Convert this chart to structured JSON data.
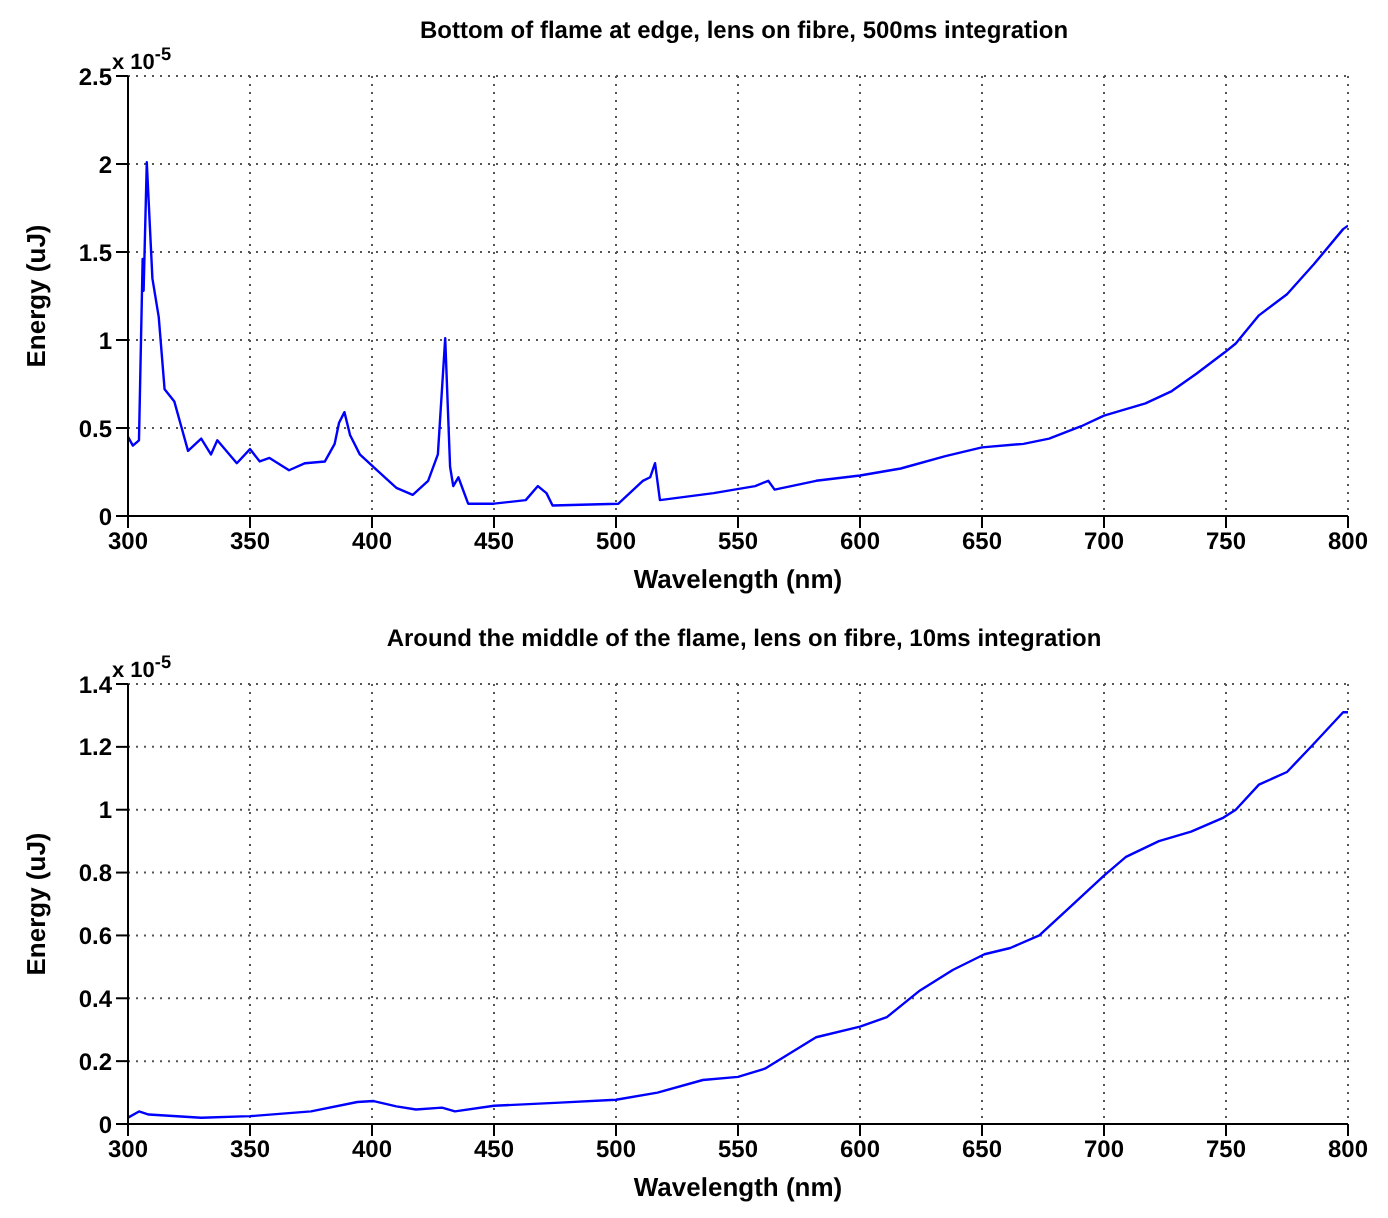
{
  "chart_data": [
    {
      "type": "line",
      "title": "Bottom of flame at edge, lens on fibre, 500ms integration",
      "xlabel": "Wavelength (nm)",
      "ylabel": "Energy (uJ)",
      "annotations": [
        "x 10$^{-5}$"
      ],
      "xlim": [
        300,
        800
      ],
      "xticks": [
        300,
        350,
        400,
        450,
        500,
        550,
        600,
        650,
        700,
        750,
        800
      ],
      "ylim": [
        0,
        2.5
      ],
      "yticks": [
        0,
        0.5,
        1,
        1.5,
        2,
        2.5
      ],
      "grid": true,
      "x": [
        300,
        302,
        304.5,
        306,
        306.4,
        307.7,
        310,
        312.6,
        315,
        319,
        322,
        324.6,
        330,
        334,
        336.6,
        344.6,
        350,
        354,
        358,
        366,
        372.6,
        380.7,
        384.7,
        386.5,
        388.7,
        391,
        395,
        402,
        410,
        416.7,
        423,
        427,
        430,
        432,
        433.3,
        435.4,
        439.4,
        450,
        463,
        468,
        471.5,
        474,
        501,
        511,
        514,
        516,
        518,
        540,
        557,
        562.4,
        565,
        582,
        600,
        616.7,
        635,
        650,
        667,
        677.5,
        690.7,
        700,
        717,
        727.8,
        738,
        749.5,
        754,
        763.5,
        775,
        786,
        798,
        800
      ],
      "series": [
        {
          "color": "#0000ff",
          "values": [
            0.45,
            0.4,
            0.43,
            1.46,
            1.28,
            2.01,
            1.35,
            1.13,
            0.72,
            0.65,
            0.5,
            0.37,
            0.44,
            0.35,
            0.43,
            0.3,
            0.38,
            0.31,
            0.33,
            0.26,
            0.3,
            0.31,
            0.41,
            0.53,
            0.59,
            0.46,
            0.35,
            0.26,
            0.16,
            0.12,
            0.2,
            0.35,
            1.01,
            0.28,
            0.17,
            0.22,
            0.07,
            0.07,
            0.09,
            0.17,
            0.13,
            0.06,
            0.07,
            0.2,
            0.22,
            0.3,
            0.09,
            0.13,
            0.17,
            0.2,
            0.15,
            0.2,
            0.23,
            0.27,
            0.34,
            0.39,
            0.41,
            0.44,
            0.51,
            0.57,
            0.64,
            0.71,
            0.81,
            0.93,
            0.98,
            1.14,
            1.26,
            1.43,
            1.63,
            1.65
          ]
        }
      ]
    },
    {
      "type": "line",
      "title": "Around the middle of the flame, lens on fibre, 10ms integration",
      "xlabel": "Wavelength (nm)",
      "ylabel": "Energy (uJ)",
      "annotations": [
        "x 10$^{-5}$"
      ],
      "xlim": [
        300,
        800
      ],
      "xticks": [
        300,
        350,
        400,
        450,
        500,
        550,
        600,
        650,
        700,
        750,
        800
      ],
      "ylim": [
        0,
        1.4
      ],
      "yticks": [
        0,
        0.2,
        0.4,
        0.6,
        0.8,
        1,
        1.2,
        1.4
      ],
      "grid": true,
      "x": [
        300,
        304.5,
        308.5,
        330,
        350,
        375,
        394,
        400.7,
        410,
        418,
        428.7,
        434,
        450,
        477,
        500,
        517,
        535.6,
        550,
        561,
        582,
        600,
        611,
        624.6,
        638,
        651,
        661.6,
        673.5,
        685.4,
        700,
        709,
        722.5,
        735.7,
        749,
        754,
        763.5,
        775,
        786,
        798,
        800
      ],
      "series": [
        {
          "color": "#0000ff",
          "values": [
            0.02,
            0.04,
            0.03,
            0.02,
            0.025,
            0.04,
            0.07,
            0.073,
            0.056,
            0.046,
            0.052,
            0.04,
            0.058,
            0.068,
            0.077,
            0.1,
            0.14,
            0.15,
            0.176,
            0.276,
            0.31,
            0.34,
            0.425,
            0.49,
            0.54,
            0.56,
            0.6,
            0.685,
            0.79,
            0.85,
            0.9,
            0.93,
            0.975,
            1.0,
            1.08,
            1.12,
            1.21,
            1.31,
            1.31
          ]
        }
      ]
    }
  ]
}
